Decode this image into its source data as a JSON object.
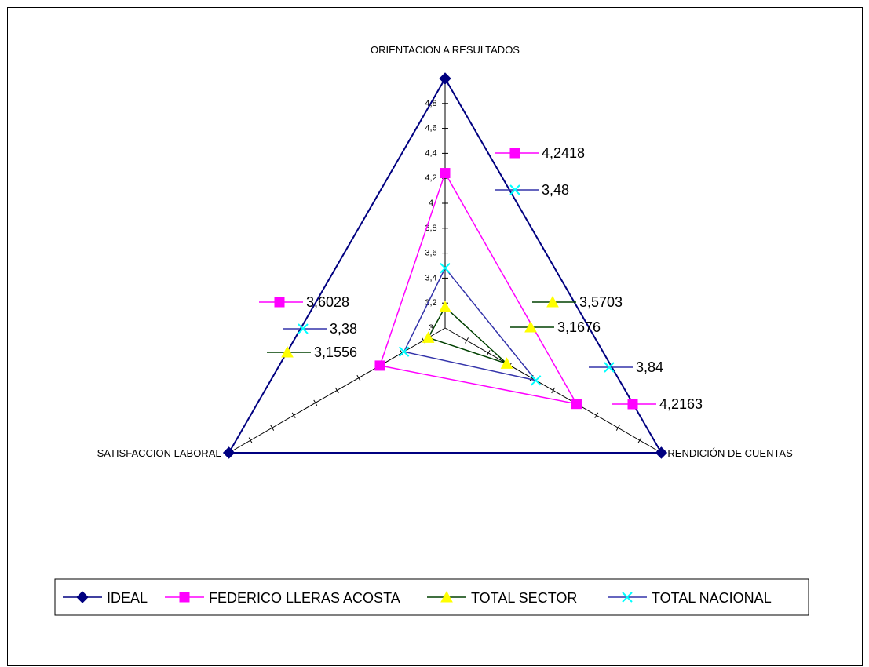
{
  "chart_data": {
    "type": "radar",
    "title": "",
    "categories": [
      "ORIENTACION A RESULTADOS",
      "RENDICIÓN DE CUENTAS",
      "SATISFACCION LABORAL"
    ],
    "rlim": [
      3,
      5
    ],
    "r_ticks": [
      "3",
      "3,2",
      "3,4",
      "3,6",
      "3,8",
      "4",
      "4,2",
      "4,4",
      "4,6",
      "4,8"
    ],
    "grid": false,
    "legend_position": "bottom",
    "series": [
      {
        "name": "IDEAL",
        "values": [
          5,
          5,
          5
        ],
        "labels": [
          "",
          "",
          ""
        ],
        "color": "#000080",
        "marker_color": "#000080",
        "marker": "diamond"
      },
      {
        "name": "FEDERICO LLERAS ACOSTA",
        "values": [
          4.2418,
          4.2163,
          3.6028
        ],
        "labels": [
          "4,2418",
          "4,2163",
          "3,6028"
        ],
        "color": "#FF00FF",
        "marker_color": "#FF00FF",
        "marker": "square"
      },
      {
        "name": "TOTAL SECTOR",
        "values": [
          3.1676,
          3.5703,
          3.1556
        ],
        "labels": [
          "3,1676",
          "3,5703",
          "3,1556"
        ],
        "color": "#004000",
        "marker_color": "#FFFF00",
        "marker": "triangle"
      },
      {
        "name": "TOTAL NACIONAL",
        "values": [
          3.48,
          3.84,
          3.38
        ],
        "labels": [
          "3,48",
          "3,84",
          "3,38"
        ],
        "color": "#3333AA",
        "marker_color": "#00FFFF",
        "marker": "x"
      }
    ]
  }
}
